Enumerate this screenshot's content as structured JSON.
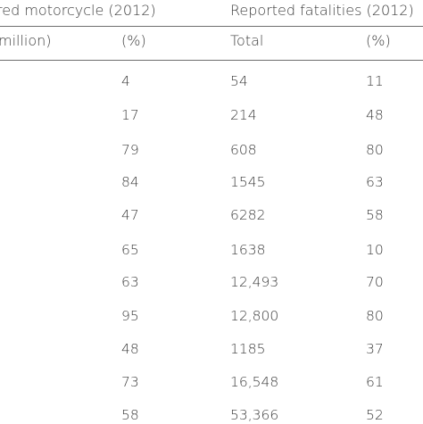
{
  "table": {
    "header": {
      "group_motorcycle": "red motorcycle (2012)",
      "group_fatalities": "Reported fatalities (2012)",
      "col_million": "million)",
      "col_moto_percent": "(%)",
      "col_total": "Total",
      "col_fatal_percent": "(%)"
    },
    "rows": [
      {
        "moto_percent": "4",
        "total": "54",
        "fatal_percent": "11"
      },
      {
        "moto_percent": "17",
        "total": "214",
        "fatal_percent": "48"
      },
      {
        "moto_percent": "79",
        "total": "608",
        "fatal_percent": "80"
      },
      {
        "moto_percent": "84",
        "total": "1545",
        "fatal_percent": "63"
      },
      {
        "moto_percent": "47",
        "total": "6282",
        "fatal_percent": "58"
      },
      {
        "moto_percent": "65",
        "total": "1638",
        "fatal_percent": "10"
      },
      {
        "moto_percent": "63",
        "total": "12,493",
        "fatal_percent": "70"
      },
      {
        "moto_percent": "95",
        "total": "12,800",
        "fatal_percent": "80"
      },
      {
        "moto_percent": "48",
        "total": "1185",
        "fatal_percent": "37"
      },
      {
        "moto_percent": "73",
        "total": "16,548",
        "fatal_percent": "61"
      },
      {
        "moto_percent": "58",
        "total": "53,366",
        "fatal_percent": "52"
      }
    ]
  }
}
